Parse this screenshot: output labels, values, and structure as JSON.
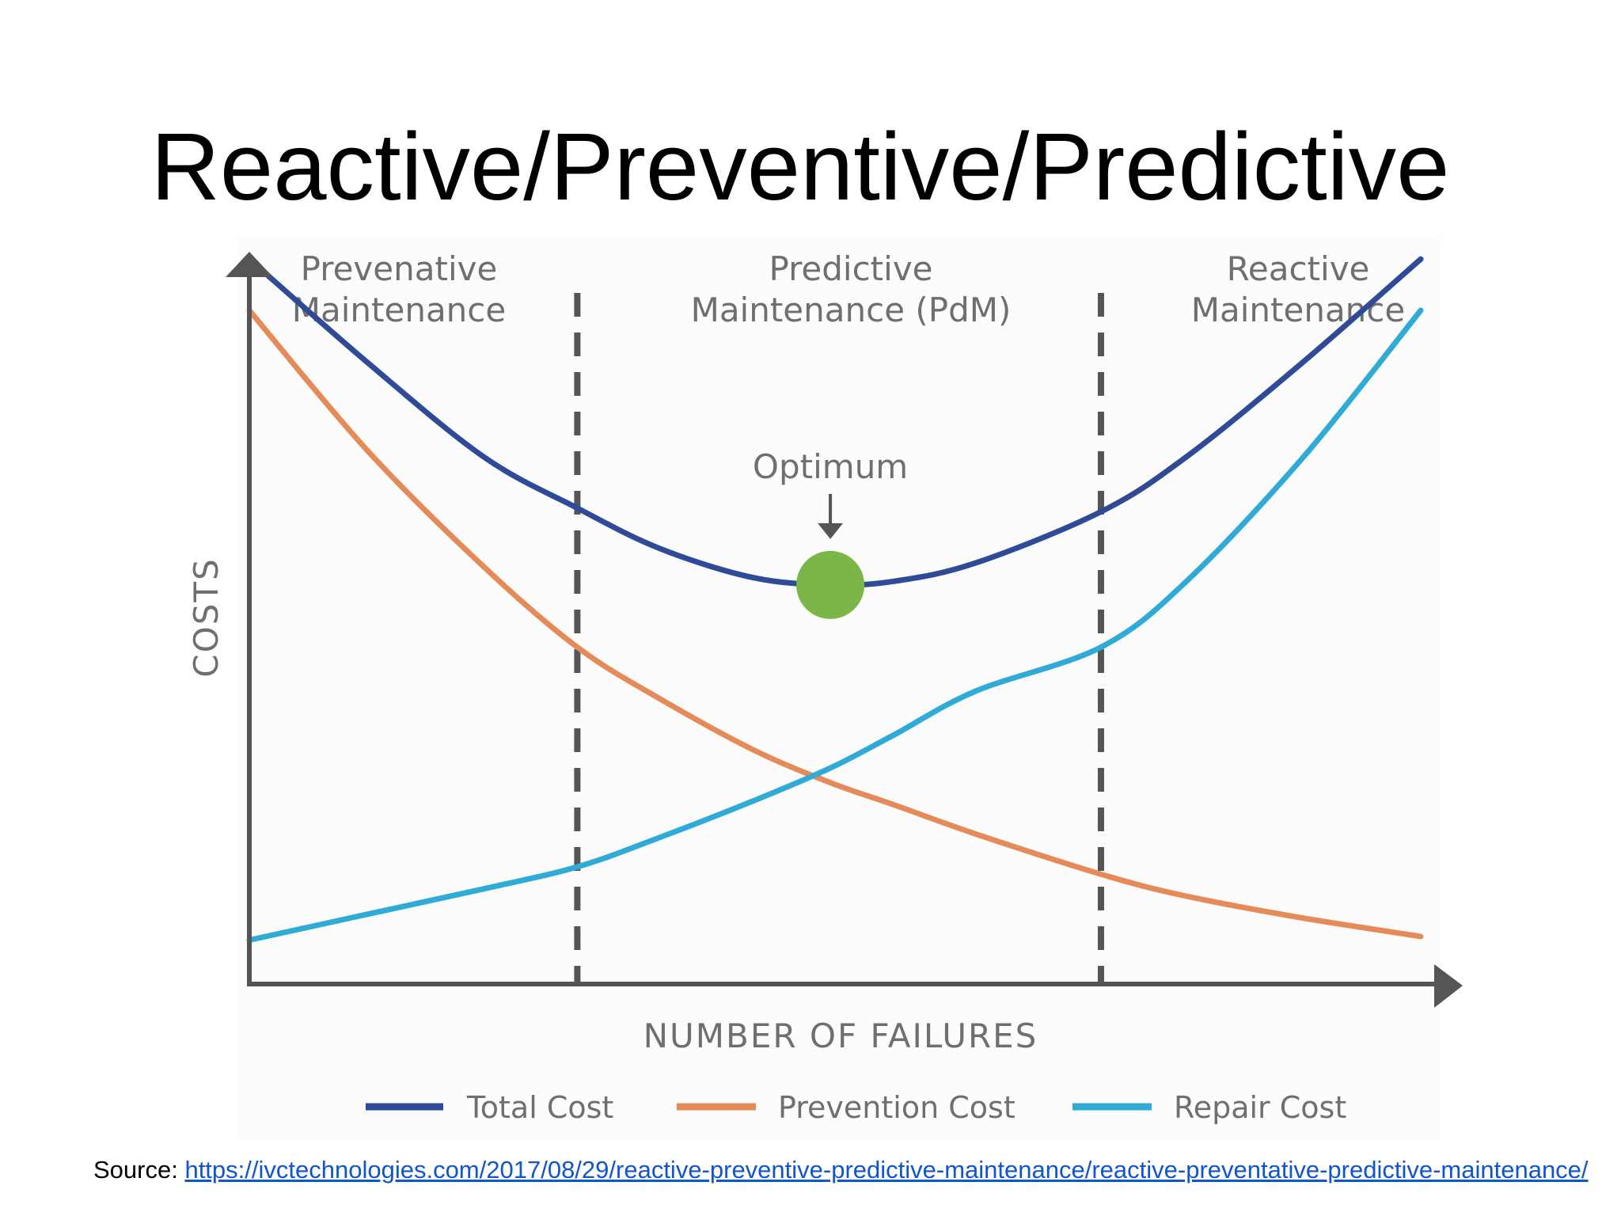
{
  "slide": {
    "title": "Reactive/Preventive/Predictive",
    "source_prefix": "Source: ",
    "source_link": "https://ivctechnologies.com/2017/08/29/reactive-preventive-predictive-maintenance/reactive-preventative-predictive-maintenance/"
  },
  "chart_data": {
    "type": "line",
    "title": "",
    "xlabel": "NUMBER OF FAILURES",
    "ylabel": "COSTS",
    "xlim": [
      0,
      10
    ],
    "ylim": [
      0,
      10
    ],
    "grid": false,
    "ticks": "none",
    "regions": [
      {
        "label_line1": "Prevenative",
        "label_line2": "Maintenance",
        "x_start": 0,
        "x_end": 2.8
      },
      {
        "label_line1": "Predictive",
        "label_line2": "Maintenance (PdM)",
        "x_start": 2.8,
        "x_end": 7.27
      },
      {
        "label_line1": "Reactive",
        "label_line2": "Maintenance",
        "x_start": 7.27,
        "x_end": 10
      }
    ],
    "dividers": [
      2.8,
      7.27
    ],
    "x": [
      0,
      1,
      2,
      2.8,
      3.5,
      4.3,
      4.96,
      5.5,
      6.2,
      7.27,
      8,
      9,
      10
    ],
    "series": [
      {
        "name": "Total Cost",
        "color": "#2f4b97",
        "values": [
          9.9,
          8.5,
          7.2,
          6.5,
          5.95,
          5.55,
          5.45,
          5.5,
          5.75,
          6.45,
          7.2,
          8.5,
          9.9
        ]
      },
      {
        "name": "Prevention Cost",
        "color": "#e58b5a",
        "values": [
          9.2,
          7.3,
          5.7,
          4.6,
          3.9,
          3.2,
          2.75,
          2.45,
          2.05,
          1.5,
          1.2,
          0.9,
          0.65
        ]
      },
      {
        "name": "Repair Cost",
        "color": "#2fabd5",
        "values": [
          0.6,
          0.95,
          1.3,
          1.6,
          2.0,
          2.5,
          2.95,
          3.4,
          4.0,
          4.6,
          5.5,
          7.2,
          9.2
        ]
      }
    ],
    "annotation": {
      "label": "Optimum",
      "x": 4.96,
      "y": 5.45,
      "marker_color": "#7ab648"
    },
    "legend": {
      "position": "bottom"
    }
  }
}
